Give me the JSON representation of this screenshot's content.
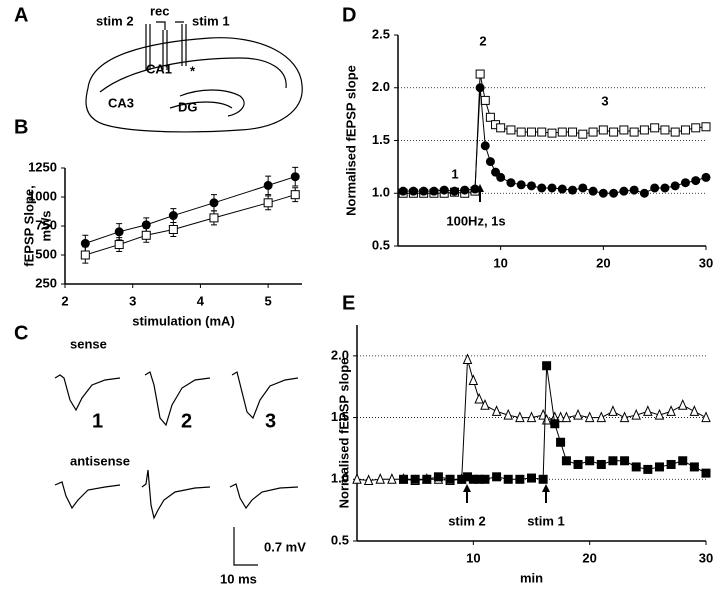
{
  "panel_labels": [
    "A",
    "B",
    "C",
    "D",
    "E"
  ],
  "diagram": {
    "electrode_labels": [
      "stim 2",
      "rec",
      "stim 1"
    ],
    "regions": [
      "CA1",
      "CA3",
      "DG"
    ],
    "marker": "*"
  },
  "traces": {
    "rows": [
      "sense",
      "antisense"
    ],
    "numbers": [
      "1",
      "2",
      "3"
    ],
    "scale_y": "0.7 mV",
    "scale_x": "10 ms"
  },
  "chart_data": [
    {
      "type": "line",
      "xlabel": "stimulation (mA)",
      "ylabel": [
        "fEPSP Slope,",
        "mV/s"
      ],
      "xlim": [
        2,
        5.5
      ],
      "xticks": [
        2,
        3,
        4,
        5
      ],
      "ylim": [
        250,
        1250
      ],
      "yticks": [
        250,
        500,
        750,
        1000,
        1250
      ],
      "grid": false,
      "x": [
        2.3,
        2.8,
        3.2,
        3.6,
        4.2,
        5.0,
        5.4
      ],
      "series": [
        {
          "marker": "circle-filled",
          "color": "#000000",
          "values": [
            600,
            700,
            760,
            840,
            950,
            1100,
            1175
          ],
          "errors": [
            70,
            70,
            60,
            60,
            70,
            80,
            80
          ]
        },
        {
          "marker": "square-open",
          "color": "#000000",
          "values": [
            500,
            590,
            670,
            720,
            820,
            950,
            1020
          ],
          "errors": [
            70,
            60,
            60,
            60,
            60,
            60,
            60
          ]
        }
      ]
    },
    {
      "type": "line",
      "ylabel": "Normalised fEPSP slope",
      "xlim": [
        0,
        30
      ],
      "xticks": [
        10,
        20,
        30
      ],
      "ylim": [
        0.5,
        2.5
      ],
      "yticks": [
        0.5,
        {
          "value": 1,
          "label": "1.0"
        },
        1.5,
        {
          "value": 2,
          "label": "2.0"
        },
        2.5
      ],
      "grid": true,
      "annotations": [
        "1",
        "2",
        "3",
        "100Hz, 1s"
      ],
      "x": [
        0.5,
        1.5,
        2.5,
        3.5,
        4.5,
        5.5,
        6.5,
        7.5,
        8,
        8.5,
        9,
        9.5,
        10,
        11,
        12,
        13,
        14,
        15,
        16,
        17,
        18,
        19,
        20,
        21,
        22,
        23,
        24,
        25,
        26,
        27,
        28,
        29,
        30
      ],
      "series": [
        {
          "marker": "square-open",
          "color": "#000000",
          "values": [
            1.0,
            1.0,
            1.0,
            1.0,
            1.0,
            1.01,
            1.0,
            1.02,
            2.13,
            1.88,
            1.72,
            1.65,
            1.62,
            1.6,
            1.58,
            1.58,
            1.58,
            1.57,
            1.58,
            1.58,
            1.56,
            1.58,
            1.6,
            1.58,
            1.6,
            1.58,
            1.6,
            1.62,
            1.6,
            1.58,
            1.6,
            1.62,
            1.63
          ]
        },
        {
          "marker": "circle-filled",
          "color": "#000000",
          "values": [
            1.02,
            1.02,
            1.02,
            1.02,
            1.03,
            1.02,
            1.03,
            1.04,
            2.0,
            1.45,
            1.3,
            1.2,
            1.15,
            1.1,
            1.08,
            1.07,
            1.05,
            1.05,
            1.04,
            1.03,
            1.05,
            1.02,
            1.0,
            1.0,
            1.02,
            1.03,
            1.0,
            1.05,
            1.05,
            1.07,
            1.1,
            1.12,
            1.15
          ]
        }
      ]
    },
    {
      "type": "line",
      "ylabel": "Normalised fEPSP slope",
      "xlabel": "min",
      "xlim": [
        0,
        30
      ],
      "xticks": [
        10,
        20,
        30
      ],
      "ylim": [
        0.5,
        2.25
      ],
      "yticks": [
        0.5,
        {
          "value": 1,
          "label": "1.0"
        },
        1.5,
        {
          "value": 2,
          "label": "2.0"
        }
      ],
      "grid": true,
      "annotations": [
        "stim 2",
        "stim 1"
      ],
      "x": [
        0,
        1,
        2,
        3,
        4,
        5,
        6,
        7,
        8,
        9,
        9.5,
        10,
        10.5,
        11,
        12,
        13,
        14,
        15,
        16,
        16.3,
        17,
        17.5,
        18,
        19,
        20,
        21,
        22,
        23,
        24,
        25,
        26,
        27,
        28,
        29,
        30
      ],
      "series": [
        {
          "marker": "triangle-open",
          "color": "#000000",
          "values": [
            1.0,
            0.99,
            1.0,
            1.0,
            1.0,
            0.99,
            1.0,
            1.0,
            0.99,
            1.0,
            1.97,
            1.8,
            1.65,
            1.6,
            1.55,
            1.52,
            1.5,
            1.5,
            1.52,
            1.48,
            1.5,
            1.5,
            1.5,
            1.52,
            1.5,
            1.5,
            1.55,
            1.5,
            1.52,
            1.55,
            1.52,
            1.55,
            1.6,
            1.55,
            1.5
          ]
        },
        {
          "marker": "square-filled",
          "color": "#000000",
          "values": [
            null,
            null,
            null,
            null,
            1.0,
            1.0,
            1.0,
            1.02,
            1.0,
            1.0,
            1.02,
            1.0,
            1.0,
            1.0,
            1.02,
            1.0,
            1.0,
            1.01,
            1.0,
            1.92,
            1.45,
            1.3,
            1.15,
            1.12,
            1.15,
            1.12,
            1.15,
            1.15,
            1.1,
            1.08,
            1.1,
            1.12,
            1.15,
            1.1,
            1.05
          ]
        }
      ]
    }
  ]
}
